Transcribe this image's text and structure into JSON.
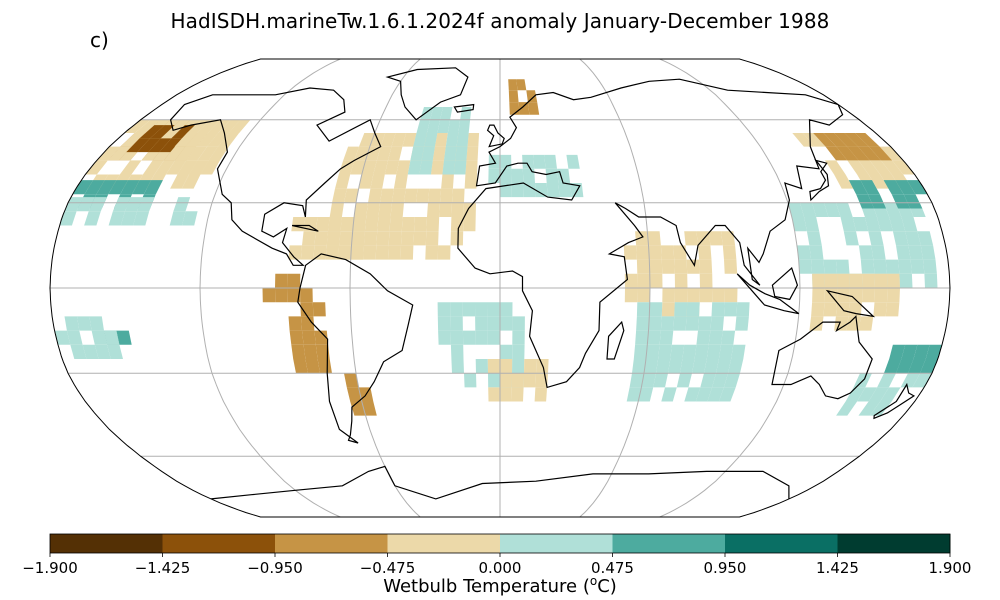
{
  "figure": {
    "title": "HadISDH.marineTw.1.6.1.2024f anomaly January-December 1988",
    "panel_label": "c)"
  },
  "colorbar": {
    "label_prefix": "Wetbulb Temperature (",
    "label_sup": "o",
    "label_suffix": "C)",
    "ticks": [
      "−1.900",
      "−1.425",
      "−0.950",
      "−0.475",
      "0.000",
      "0.475",
      "0.950",
      "1.425",
      "1.900"
    ],
    "tick_values": [
      -1.9,
      -1.425,
      -0.95,
      -0.475,
      0.0,
      0.475,
      0.95,
      1.425,
      1.9
    ],
    "colors": [
      "#543005",
      "#8c510a",
      "#c69445",
      "#ecd9a9",
      "#b0e0d8",
      "#4dab9f",
      "#0a6f64",
      "#003c30"
    ]
  },
  "map": {
    "projection": "Robinson",
    "graticule_longitudes": [
      -120,
      -60,
      0,
      60,
      120
    ],
    "graticule_latitudes": [
      -60,
      -30,
      0,
      30,
      60
    ],
    "regions": [
      {
        "name": "north-pacific-west-brown",
        "lon": [
          -175,
          -140
        ],
        "lat": [
          45,
          60
        ],
        "class": -2
      },
      {
        "name": "north-pacific-west-tan",
        "lon": [
          -180,
          -125
        ],
        "lat": [
          35,
          60
        ],
        "class": -1
      },
      {
        "name": "north-pacific-dark-core",
        "lon": [
          -170,
          -150
        ],
        "lat": [
          48,
          57
        ],
        "class": -3
      },
      {
        "name": "north-pacific-teal-band",
        "lon": [
          -180,
          -145
        ],
        "lat": [
          28,
          38
        ],
        "class": 2
      },
      {
        "name": "north-pacific-light-band",
        "lon": [
          -180,
          -125
        ],
        "lat": [
          22,
          32
        ],
        "class": 1
      },
      {
        "name": "gulf-of-alaska-tan",
        "lon": [
          -150,
          -125
        ],
        "lat": [
          40,
          58
        ],
        "class": -1
      },
      {
        "name": "north-atlantic-tan",
        "lon": [
          -70,
          -10
        ],
        "lat": [
          10,
          55
        ],
        "class": -1
      },
      {
        "name": "north-atlantic-light",
        "lon": [
          -40,
          -15
        ],
        "lat": [
          40,
          62
        ],
        "class": 1
      },
      {
        "name": "caribbean-tan",
        "lon": [
          -85,
          -55
        ],
        "lat": [
          10,
          25
        ],
        "class": -1
      },
      {
        "name": "mediterranean-light",
        "lon": [
          -5,
          35
        ],
        "lat": [
          32,
          44
        ],
        "class": 1
      },
      {
        "name": "norway-brown",
        "lon": [
          5,
          20
        ],
        "lat": [
          62,
          75
        ],
        "class": -2
      },
      {
        "name": "indian-ocean-tan",
        "lon": [
          50,
          95
        ],
        "lat": [
          -10,
          20
        ],
        "class": -1
      },
      {
        "name": "indian-ocean-light",
        "lon": [
          55,
          100
        ],
        "lat": [
          -40,
          -5
        ],
        "class": 1
      },
      {
        "name": "west-pacific-light",
        "lon": [
          120,
          175
        ],
        "lat": [
          0,
          30
        ],
        "class": 1
      },
      {
        "name": "west-pacific-tan",
        "lon": [
          125,
          160
        ],
        "lat": [
          -15,
          5
        ],
        "class": -1
      },
      {
        "name": "kuroshio-tan",
        "lon": [
          140,
          180
        ],
        "lat": [
          35,
          55
        ],
        "class": -1
      },
      {
        "name": "kuroshio-brown",
        "lon": [
          150,
          175
        ],
        "lat": [
          45,
          55
        ],
        "class": -2
      },
      {
        "name": "north-pacific-east-teal",
        "lon": [
          150,
          180
        ],
        "lat": [
          28,
          35
        ],
        "class": 2
      },
      {
        "name": "tasman-light",
        "lon": [
          150,
          180
        ],
        "lat": [
          -45,
          -25
        ],
        "class": 1
      },
      {
        "name": "tasman-teal",
        "lon": [
          160,
          180
        ],
        "lat": [
          -30,
          -20
        ],
        "class": 2
      },
      {
        "name": "south-atlantic-light",
        "lon": [
          -25,
          10
        ],
        "lat": [
          -35,
          -5
        ],
        "class": 1
      },
      {
        "name": "south-atlantic-tan",
        "lon": [
          -5,
          20
        ],
        "lat": [
          -40,
          -28
        ],
        "class": -1
      },
      {
        "name": "east-pacific-brown",
        "lon": [
          -95,
          -75
        ],
        "lat": [
          -5,
          5
        ],
        "class": -2
      },
      {
        "name": "peru-tan",
        "lon": [
          -85,
          -70
        ],
        "lat": [
          -30,
          -8
        ],
        "class": -2
      },
      {
        "name": "patagonia-tan",
        "lon": [
          -65,
          -55
        ],
        "lat": [
          -45,
          -30
        ],
        "class": -2
      },
      {
        "name": "south-pacific-teal",
        "lon": [
          -160,
          -140
        ],
        "lat": [
          -20,
          -15
        ],
        "class": 2
      },
      {
        "name": "south-pacific-light",
        "lon": [
          -180,
          -155
        ],
        "lat": [
          -25,
          -12
        ],
        "class": 1
      }
    ]
  }
}
